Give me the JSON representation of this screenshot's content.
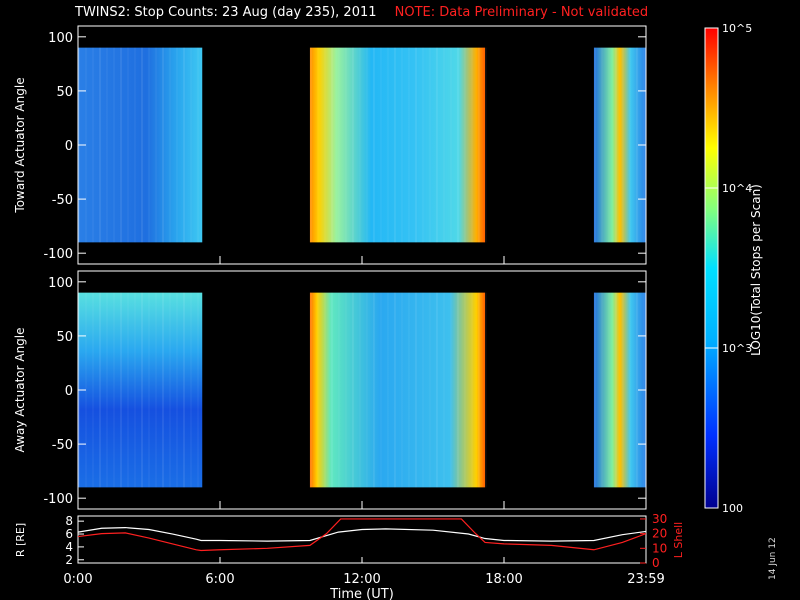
{
  "title": {
    "main": "TWINS2: Stop Counts: 23 Aug (day 235), 2011",
    "note": "NOTE: Data Preliminary - Not validated"
  },
  "stamp": "14 Jun 12",
  "colors": {
    "background": "#000000",
    "frame": "#ffffff",
    "note": "#ff2020",
    "r_line": "#ffffff",
    "lshell_line": "#ff2020"
  },
  "chart_data": [
    {
      "type": "heatmap",
      "id": "toward",
      "ylabel": "Toward Actuator Angle",
      "ylim": [
        -110,
        110
      ],
      "yticks": [
        "100",
        "50",
        "0",
        "-50",
        "-100"
      ],
      "xlim": [
        0,
        24
      ],
      "data_coverage_hours": [
        [
          0.0,
          5.25
        ],
        [
          9.8,
          17.2
        ],
        [
          21.8,
          24.0
        ]
      ]
    },
    {
      "type": "heatmap",
      "id": "away",
      "ylabel": "Away Actuator Angle",
      "ylim": [
        -110,
        110
      ],
      "yticks": [
        "100",
        "50",
        "0",
        "-50",
        "-100"
      ],
      "xlim": [
        0,
        24
      ],
      "data_coverage_hours": [
        [
          0.0,
          5.25
        ],
        [
          9.8,
          17.2
        ],
        [
          21.8,
          24.0
        ]
      ]
    },
    {
      "type": "line",
      "id": "orbit",
      "xlabel": "Time (UT)",
      "xticks": [
        "0:00",
        "6:00",
        "12:00",
        "18:00",
        "23:59"
      ],
      "ylabel_left": "R [RE]",
      "ylabel_right": "L Shell",
      "yticks_left": [
        "8",
        "6",
        "4",
        "2"
      ],
      "yticks_right": [
        "30",
        "20",
        "10",
        "0"
      ],
      "series": [
        {
          "name": "R [RE]",
          "x": [
            0,
            1,
            2,
            3,
            4,
            5,
            5.2,
            6,
            8,
            9.8,
            11,
            12,
            13,
            15,
            16.5,
            17.2,
            18,
            20,
            21.8,
            23,
            24
          ],
          "y": [
            6.3,
            6.9,
            7.0,
            6.7,
            6.0,
            5.2,
            5.0,
            5.0,
            4.9,
            5.0,
            6.3,
            6.7,
            6.8,
            6.6,
            6.0,
            5.3,
            5.0,
            4.9,
            5.0,
            5.9,
            6.4
          ]
        },
        {
          "name": "L Shell",
          "x": [
            0,
            1,
            2,
            3,
            4,
            5,
            5.2,
            6,
            8,
            9.8,
            10.5,
            11.1,
            16.2,
            16.8,
            17.2,
            18,
            20,
            21.8,
            23,
            24
          ],
          "y": [
            18,
            20,
            20.5,
            17,
            13,
            9,
            8.5,
            9,
            10,
            12,
            20,
            30,
            30,
            20,
            14,
            13,
            12,
            9,
            14,
            20
          ]
        }
      ]
    }
  ],
  "colorbar": {
    "label": "LOG10(Total Stops per Scan)",
    "ticks": [
      "10^5",
      "10^4",
      "10^3",
      "100"
    ],
    "range": [
      100,
      100000
    ],
    "scale": "log"
  }
}
